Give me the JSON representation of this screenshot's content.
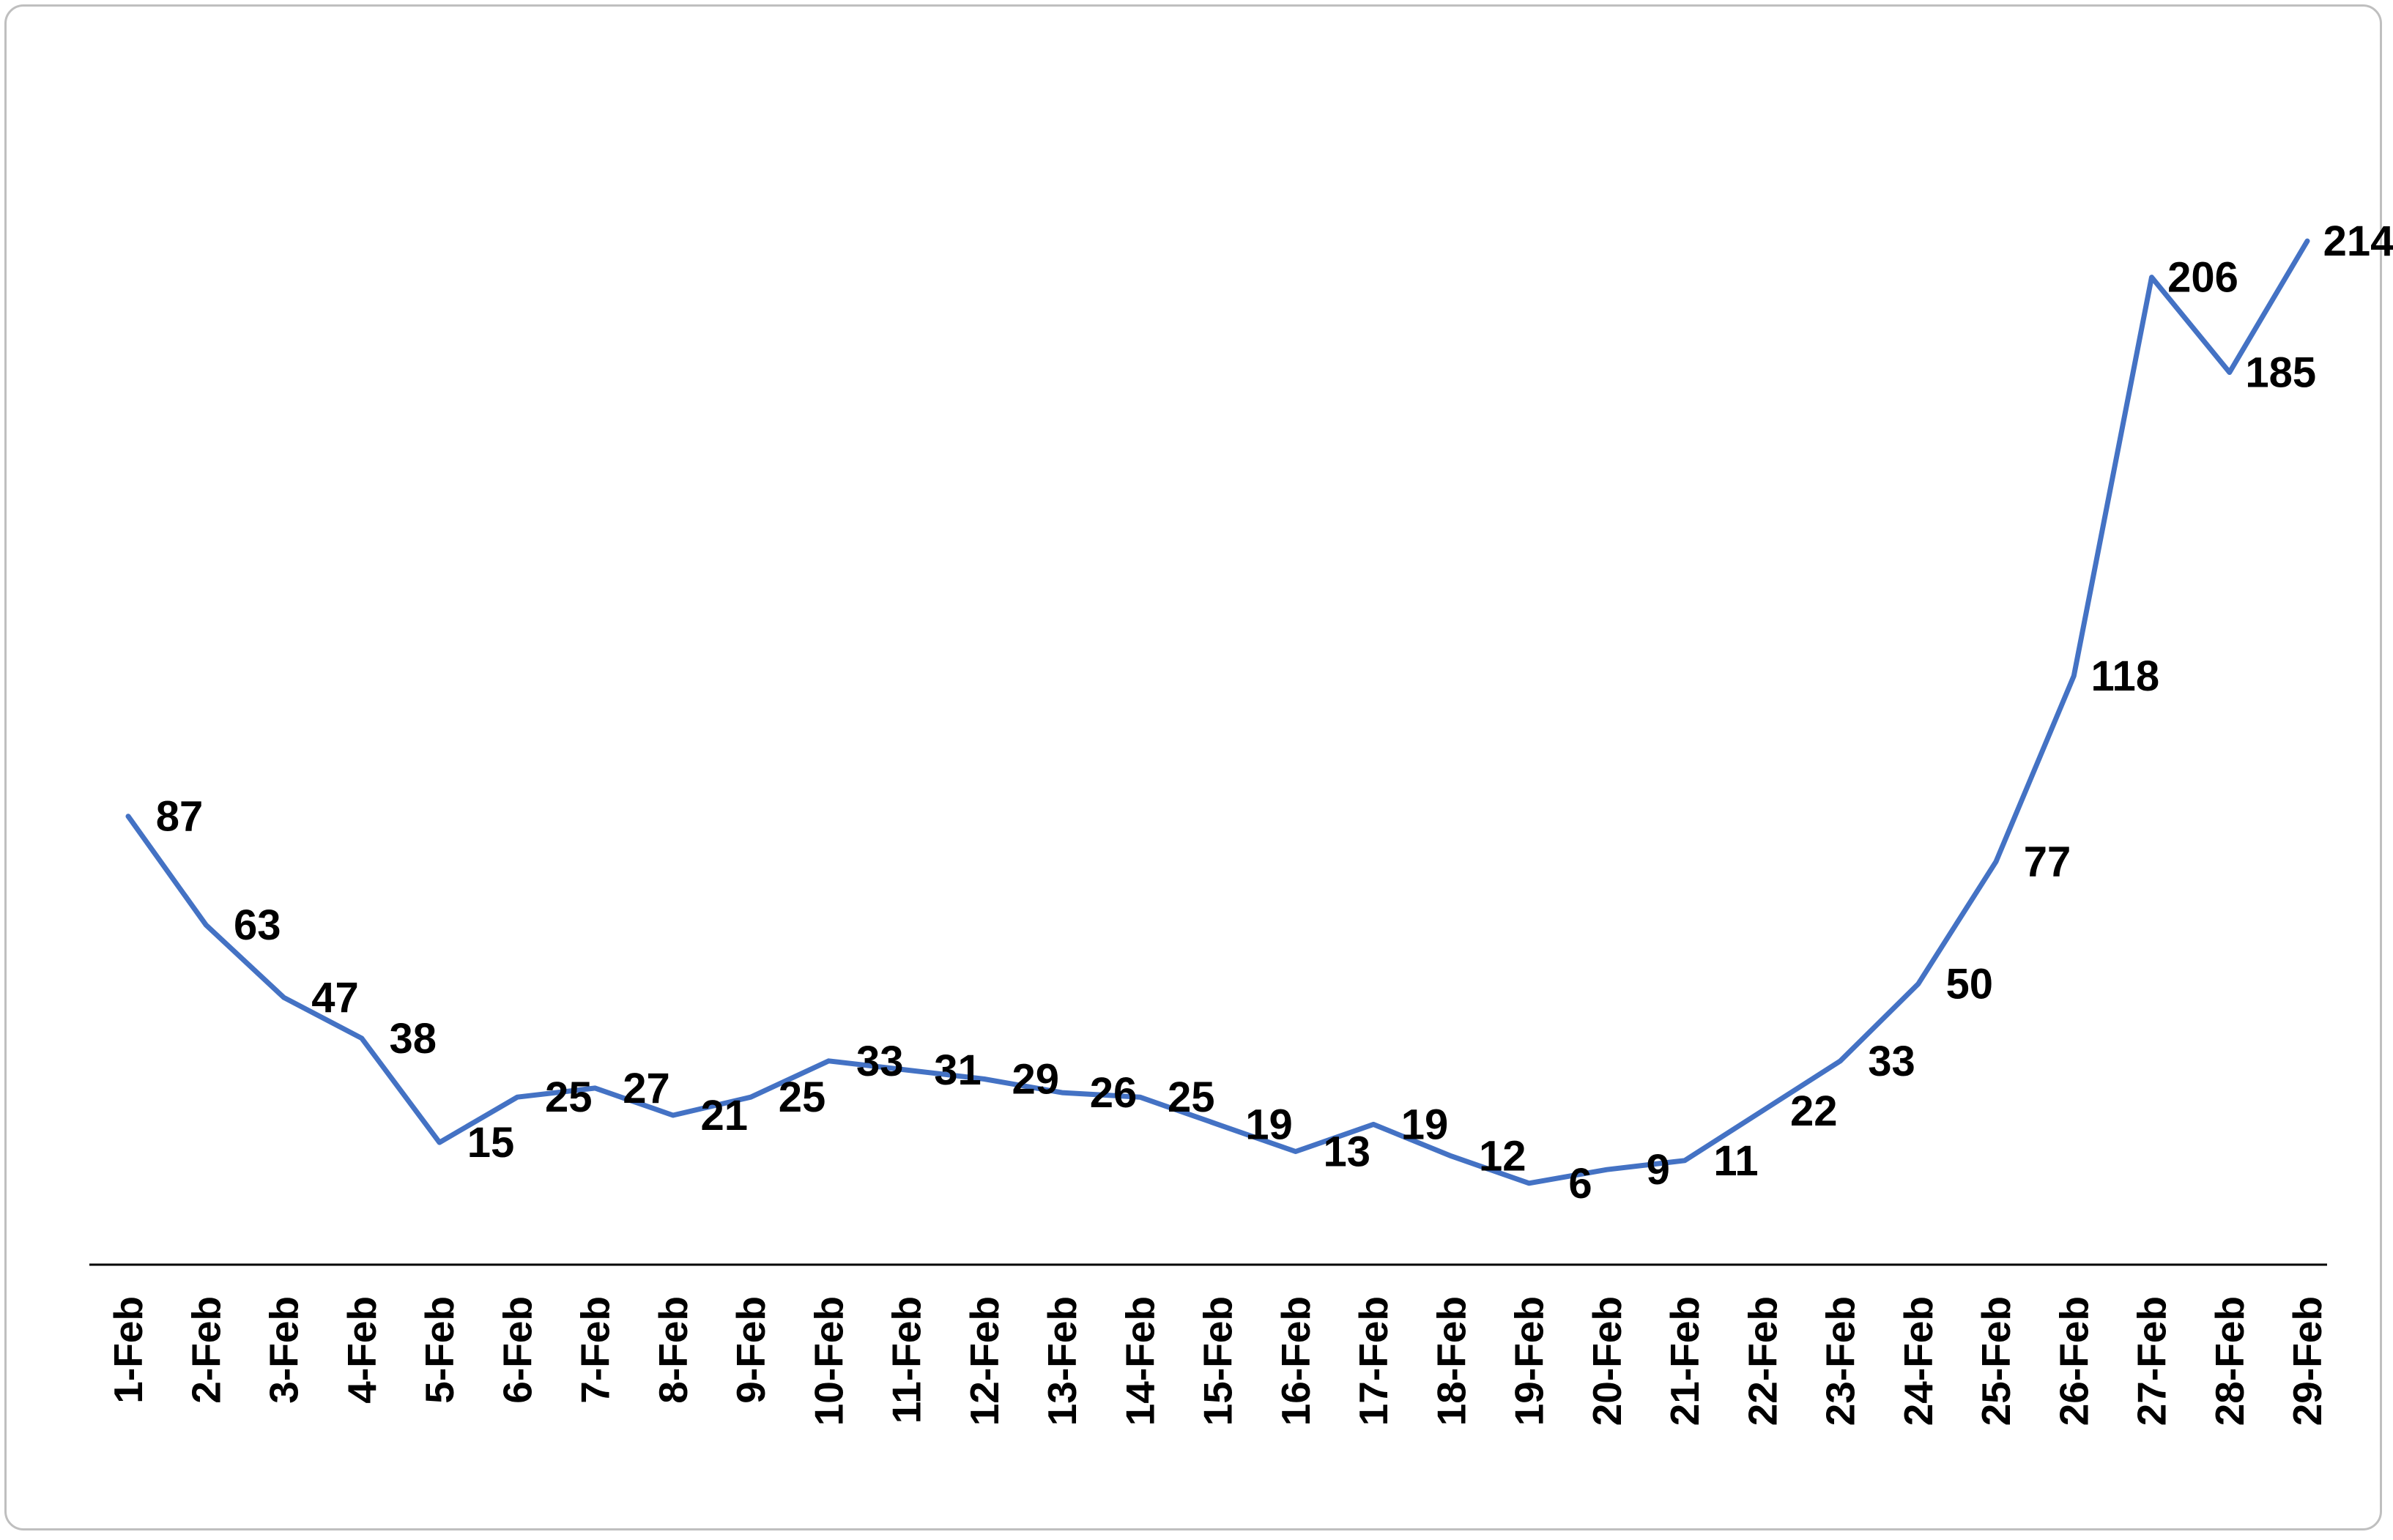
{
  "chart_data": {
    "type": "line",
    "title": "",
    "xlabel": "",
    "ylabel": "",
    "categories": [
      "1-Feb",
      "2-Feb",
      "3-Feb",
      "4-Feb",
      "5-Feb",
      "6-Feb",
      "7-Feb",
      "8-Feb",
      "9-Feb",
      "10-Feb",
      "11-Feb",
      "12-Feb",
      "13-Feb",
      "14-Feb",
      "15-Feb",
      "16-Feb",
      "17-Feb",
      "18-Feb",
      "19-Feb",
      "20-Feb",
      "21-Feb",
      "22-Feb",
      "23-Feb",
      "24-Feb",
      "25-Feb",
      "26-Feb",
      "27-Feb",
      "28-Feb",
      "29-Feb"
    ],
    "series": [
      {
        "values": [
          87,
          63,
          47,
          38,
          15,
          25,
          27,
          21,
          25,
          33,
          31,
          29,
          26,
          25,
          19,
          13,
          19,
          12,
          6,
          9,
          11,
          22,
          33,
          50,
          77,
          118,
          206,
          185,
          214
        ],
        "color": "#4472c4"
      }
    ],
    "ylim": [
      -6,
      220
    ],
    "grid": false,
    "legend": "none",
    "data_labels": true,
    "frame_color": "#bfbfbf"
  }
}
